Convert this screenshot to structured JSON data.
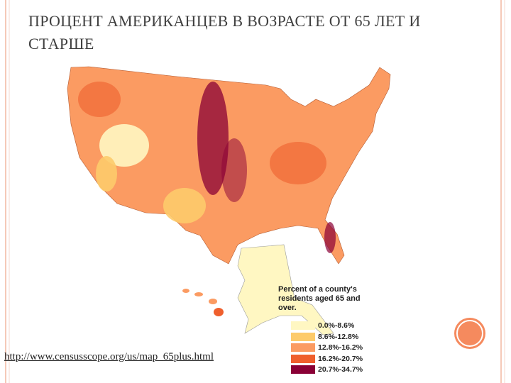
{
  "slide": {
    "title": "ПРОЦЕНТ АМЕРИКАНЦЕВ В ВОЗРАСТЕ ОТ 65 ЛЕТ И СТАРШЕ",
    "source_link": "http://www.censusscope.org/us/map_65plus.html"
  },
  "legend": {
    "title": "Percent of a county's residents aged 65 and over.",
    "items": [
      {
        "label": "0.0%-8.6%",
        "color": "#fff7c2"
      },
      {
        "label": "8.6%-12.8%",
        "color": "#fdcb6b"
      },
      {
        "label": "12.8%-16.2%",
        "color": "#fb9b62"
      },
      {
        "label": "16.2%-20.7%",
        "color": "#ef5f2d"
      },
      {
        "label": "20.7%-34.7%",
        "color": "#8a0036"
      }
    ]
  }
}
